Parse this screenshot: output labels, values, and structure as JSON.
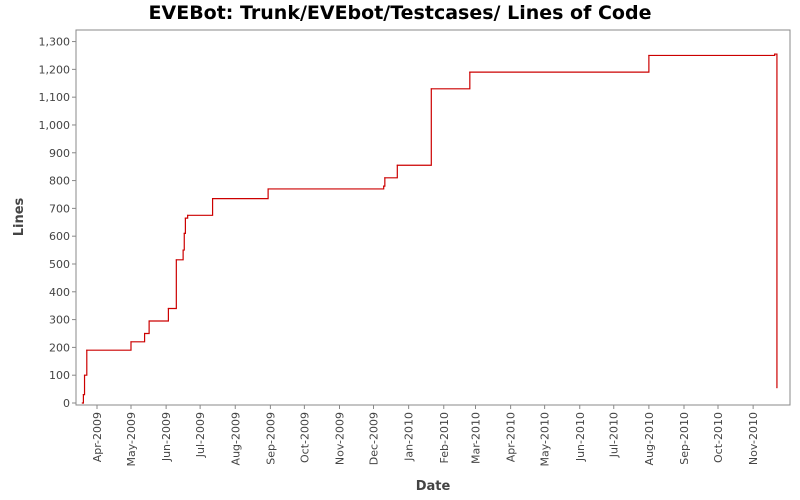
{
  "chart_data": {
    "type": "line",
    "title": "EVEBot: Trunk/EVEbot/Testcases/ Lines of Code",
    "xlabel": "Date",
    "ylabel": "Lines",
    "ylim": [
      0,
      1320
    ],
    "xlim": [
      "2009-03-17",
      "2010-11-30"
    ],
    "grid": false,
    "legend": "none",
    "y_ticks": [
      "0",
      "100",
      "200",
      "300",
      "400",
      "500",
      "600",
      "700",
      "800",
      "900",
      "1,000",
      "1,100",
      "1,200",
      "1,300"
    ],
    "x_ticks": [
      {
        "date": "2009-04-01",
        "label": "Apr-2009"
      },
      {
        "date": "2009-05-01",
        "label": "May-2009"
      },
      {
        "date": "2009-06-01",
        "label": "Jun-2009"
      },
      {
        "date": "2009-07-01",
        "label": "Jul-2009"
      },
      {
        "date": "2009-08-01",
        "label": "Aug-2009"
      },
      {
        "date": "2009-09-01",
        "label": "Sep-2009"
      },
      {
        "date": "2009-10-01",
        "label": "Oct-2009"
      },
      {
        "date": "2009-11-01",
        "label": "Nov-2009"
      },
      {
        "date": "2009-12-01",
        "label": "Dec-2009"
      },
      {
        "date": "2010-01-01",
        "label": "Jan-2010"
      },
      {
        "date": "2010-02-01",
        "label": "Feb-2010"
      },
      {
        "date": "2010-03-01",
        "label": "Mar-2010"
      },
      {
        "date": "2010-04-01",
        "label": "Apr-2010"
      },
      {
        "date": "2010-05-01",
        "label": "May-2010"
      },
      {
        "date": "2010-06-01",
        "label": "Jun-2010"
      },
      {
        "date": "2010-07-01",
        "label": "Jul-2010"
      },
      {
        "date": "2010-08-01",
        "label": "Aug-2010"
      },
      {
        "date": "2010-09-01",
        "label": "Sep-2010"
      },
      {
        "date": "2010-10-01",
        "label": "Oct-2010"
      },
      {
        "date": "2010-11-01",
        "label": "Nov-2010"
      }
    ],
    "series": [
      {
        "color": "#cc0000",
        "step": true,
        "points": [
          {
            "x": "2009-03-19",
            "y": 0
          },
          {
            "x": "2009-03-20",
            "y": 30
          },
          {
            "x": "2009-03-21",
            "y": 100
          },
          {
            "x": "2009-03-23",
            "y": 190
          },
          {
            "x": "2009-05-01",
            "y": 220
          },
          {
            "x": "2009-05-13",
            "y": 250
          },
          {
            "x": "2009-05-17",
            "y": 295
          },
          {
            "x": "2009-06-03",
            "y": 340
          },
          {
            "x": "2009-06-10",
            "y": 515
          },
          {
            "x": "2009-06-16",
            "y": 550
          },
          {
            "x": "2009-06-17",
            "y": 610
          },
          {
            "x": "2009-06-18",
            "y": 665
          },
          {
            "x": "2009-06-20",
            "y": 675
          },
          {
            "x": "2009-07-12",
            "y": 735
          },
          {
            "x": "2009-08-30",
            "y": 770
          },
          {
            "x": "2009-12-10",
            "y": 780
          },
          {
            "x": "2009-12-11",
            "y": 810
          },
          {
            "x": "2009-12-22",
            "y": 855
          },
          {
            "x": "2010-01-21",
            "y": 1130
          },
          {
            "x": "2010-02-24",
            "y": 1190
          },
          {
            "x": "2010-08-01",
            "y": 1250
          },
          {
            "x": "2010-11-20",
            "y": 1255
          },
          {
            "x": "2010-11-22",
            "y": 55
          }
        ]
      }
    ]
  }
}
